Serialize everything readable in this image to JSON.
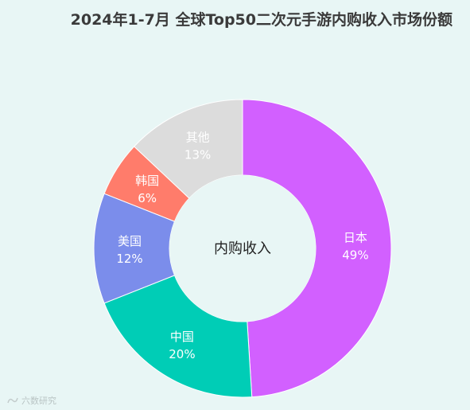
{
  "title": "2024年1-7月 全球Top50二次元手游内购收入市场份额",
  "center_label": "内购收入",
  "watermark": "六数研究",
  "chart_data": {
    "type": "pie",
    "title": "2024年1-7月 全球Top50二次元手游内购收入市场份额",
    "donut": true,
    "center_label": "内购收入",
    "slices": [
      {
        "label": "日本",
        "value": 49,
        "display": "49%",
        "color": "#d260ff"
      },
      {
        "label": "中国",
        "value": 20,
        "display": "20%",
        "color": "#00cdb6"
      },
      {
        "label": "美国",
        "value": 12,
        "display": "12%",
        "color": "#7b8deb"
      },
      {
        "label": "韩国",
        "value": 6,
        "display": "6%",
        "color": "#ff7c6b"
      },
      {
        "label": "其他",
        "value": 13,
        "display": "13%",
        "color": "#dcdcdc"
      }
    ],
    "start_angle": "12 o'clock",
    "direction": "clockwise"
  }
}
